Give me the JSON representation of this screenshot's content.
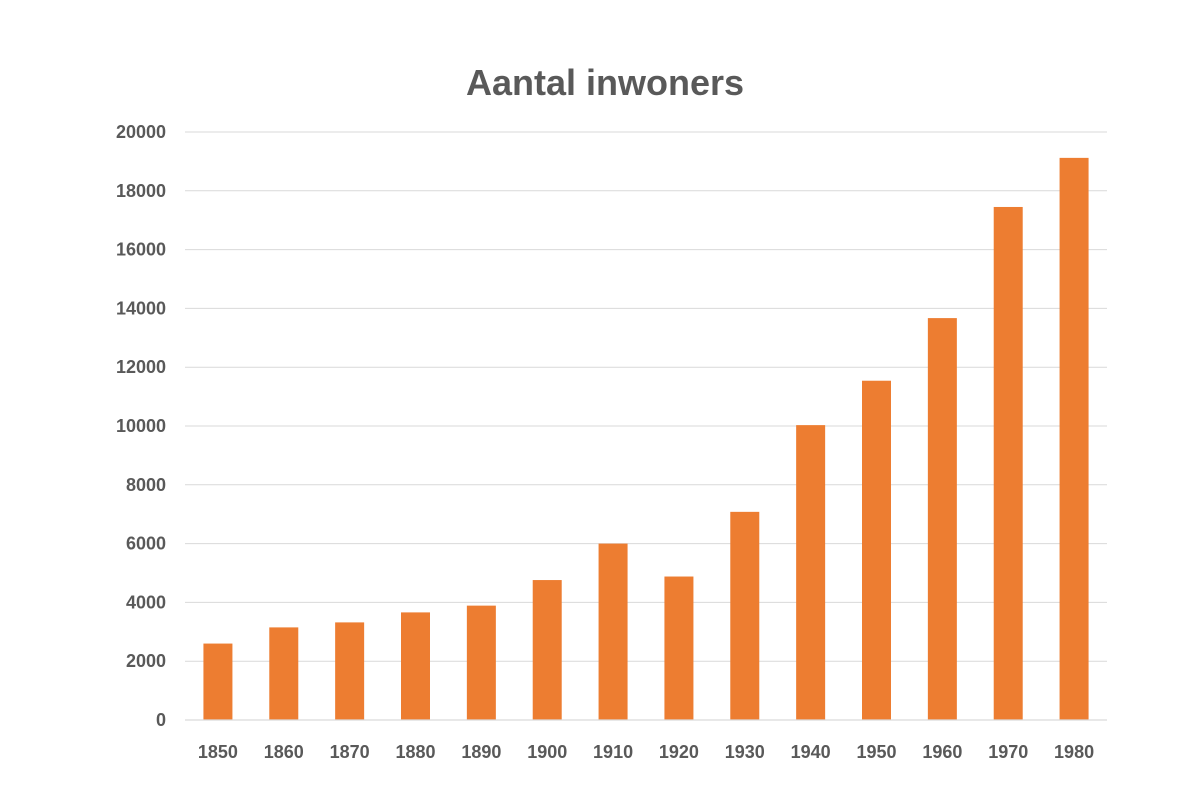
{
  "chart_data": {
    "type": "bar",
    "title": "Aantal inwoners",
    "xlabel": "",
    "ylabel": "",
    "categories": [
      "1850",
      "1860",
      "1870",
      "1880",
      "1890",
      "1900",
      "1910",
      "1920",
      "1930",
      "1940",
      "1950",
      "1960",
      "1970",
      "1980"
    ],
    "values": [
      2600,
      3150,
      3320,
      3660,
      3890,
      4760,
      6000,
      4880,
      7080,
      10030,
      11540,
      13670,
      17450,
      19120
    ],
    "ylim": [
      0,
      20000
    ],
    "yticks": [
      "0",
      "2000",
      "4000",
      "6000",
      "8000",
      "10000",
      "12000",
      "14000",
      "16000",
      "18000",
      "20000"
    ],
    "grid": true,
    "legend": "none",
    "colors": {
      "bar": "#ED7D31",
      "text": "#595959",
      "grid": "#D9D9D9"
    }
  }
}
